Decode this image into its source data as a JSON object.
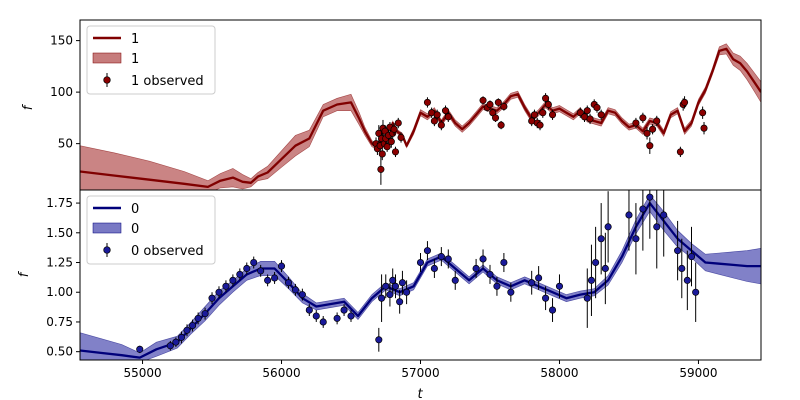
{
  "chart_data": [
    {
      "type": "line",
      "ylabel": "f",
      "xlim": [
        54550,
        59450
      ],
      "ylim": [
        5,
        170
      ],
      "yticks": [
        50,
        100,
        150
      ],
      "colors": {
        "line": "#800000",
        "band": "#b35050",
        "marker": "#8b0000"
      },
      "legend": {
        "position": "top-left",
        "line_label": "1",
        "band_label": "1",
        "points_label": "1 observed"
      },
      "gp_mean": {
        "x": [
          54550,
          54800,
          55050,
          55300,
          55470,
          55560,
          55650,
          55720,
          55780,
          55830,
          55900,
          56000,
          56100,
          56200,
          56300,
          56400,
          56500,
          56560,
          56600,
          56650,
          56700,
          56720,
          56750,
          56780,
          56800,
          56830,
          56870,
          56900,
          56950,
          57000,
          57050,
          57100,
          57150,
          57200,
          57250,
          57300,
          57350,
          57400,
          57450,
          57500,
          57550,
          57600,
          57650,
          57700,
          57750,
          57800,
          57850,
          57900,
          57950,
          58000,
          58050,
          58100,
          58150,
          58200,
          58250,
          58300,
          58350,
          58400,
          58450,
          58500,
          58550,
          58600,
          58650,
          58700,
          58750,
          58800,
          58850,
          58900,
          58950,
          59000,
          59050,
          59100,
          59150,
          59200,
          59250,
          59300,
          59350,
          59400,
          59450
        ],
        "y": [
          23,
          19,
          15,
          11,
          8,
          14,
          17,
          13,
          12,
          18,
          22,
          35,
          48,
          55,
          82,
          88,
          90,
          74,
          62,
          50,
          45,
          60,
          52,
          58,
          70,
          62,
          58,
          48,
          62,
          80,
          76,
          82,
          70,
          80,
          70,
          64,
          70,
          78,
          86,
          84,
          82,
          88,
          96,
          98,
          85,
          74,
          80,
          88,
          82,
          84,
          80,
          76,
          82,
          74,
          72,
          70,
          82,
          80,
          72,
          66,
          68,
          62,
          72,
          70,
          60,
          78,
          82,
          62,
          70,
          90,
          102,
          120,
          140,
          142,
          132,
          128,
          120,
          110,
          100
        ]
      },
      "gp_band_halfwidth": [
        25,
        22,
        18,
        12,
        6,
        7,
        9,
        7,
        4,
        4,
        6,
        8,
        10,
        8,
        6,
        6,
        8,
        6,
        4,
        3,
        2,
        2,
        2,
        2,
        2,
        2,
        2,
        2,
        3,
        3,
        3,
        3,
        3,
        3,
        3,
        3,
        3,
        3,
        3,
        3,
        3,
        3,
        3,
        3,
        3,
        3,
        3,
        3,
        3,
        3,
        3,
        3,
        3,
        3,
        3,
        3,
        3,
        3,
        3,
        3,
        3,
        3,
        3,
        3,
        3,
        3,
        3,
        3,
        3,
        3,
        3,
        3,
        4,
        5,
        6,
        7,
        8,
        9,
        10
      ],
      "observed": {
        "x": [
          56680,
          56690,
          56700,
          56710,
          56715,
          56720,
          56725,
          56730,
          56740,
          56745,
          56750,
          56760,
          56770,
          56780,
          56790,
          56800,
          56810,
          56820,
          56840,
          56860,
          57050,
          57080,
          57100,
          57120,
          57150,
          57180,
          57200,
          57450,
          57480,
          57500,
          57520,
          57540,
          57560,
          57580,
          57600,
          57800,
          57820,
          57840,
          57860,
          57880,
          57900,
          57920,
          57950,
          58150,
          58180,
          58200,
          58220,
          58250,
          58270,
          58300,
          58550,
          58600,
          58630,
          58650,
          58670,
          58700,
          58870,
          58890,
          58900,
          59030,
          59040
        ],
        "y": [
          50,
          45,
          60,
          48,
          25,
          55,
          40,
          65,
          50,
          62,
          55,
          47,
          58,
          66,
          52,
          60,
          64,
          42,
          70,
          56,
          90,
          80,
          72,
          78,
          68,
          82,
          76,
          92,
          85,
          88,
          80,
          75,
          90,
          68,
          86,
          72,
          78,
          70,
          68,
          80,
          94,
          88,
          78,
          80,
          76,
          82,
          74,
          88,
          85,
          78,
          70,
          75,
          60,
          48,
          64,
          72,
          42,
          88,
          90,
          80,
          65
        ],
        "err": [
          6,
          6,
          8,
          6,
          15,
          6,
          6,
          8,
          5,
          6,
          5,
          5,
          6,
          5,
          6,
          5,
          6,
          5,
          5,
          5,
          5,
          5,
          5,
          5,
          5,
          5,
          5,
          4,
          4,
          4,
          4,
          4,
          4,
          4,
          4,
          5,
          5,
          5,
          5,
          5,
          5,
          5,
          5,
          5,
          5,
          5,
          5,
          5,
          5,
          5,
          5,
          5,
          6,
          8,
          5,
          5,
          5,
          6,
          6,
          6,
          6
        ]
      }
    },
    {
      "type": "line",
      "ylabel": "f",
      "xlabel": "t",
      "xlim": [
        54550,
        59450
      ],
      "ylim": [
        0.43,
        1.86
      ],
      "xticks": [
        55000,
        56000,
        57000,
        58000,
        59000
      ],
      "yticks": [
        0.5,
        0.75,
        1.0,
        1.25,
        1.5,
        1.75
      ],
      "ytick_labels": [
        "0.50",
        "0.75",
        "1.00",
        "1.25",
        "1.50",
        "1.75"
      ],
      "colors": {
        "line": "#00007a",
        "band": "#4c4cb0",
        "marker": "#1a1a9a"
      },
      "legend": {
        "position": "top-left",
        "line_label": "0",
        "band_label": "0",
        "points_label": "0 observed"
      },
      "gp_mean": {
        "x": [
          54550,
          54700,
          54850,
          54980,
          55100,
          55250,
          55350,
          55450,
          55550,
          55650,
          55750,
          55850,
          55950,
          56050,
          56150,
          56250,
          56350,
          56450,
          56550,
          56650,
          56750,
          56850,
          56950,
          57050,
          57150,
          57250,
          57350,
          57450,
          57550,
          57650,
          57750,
          57850,
          57950,
          58050,
          58150,
          58250,
          58350,
          58450,
          58550,
          58650,
          58750,
          58850,
          58950,
          59050,
          59150,
          59250,
          59350,
          59450
        ],
        "y": [
          0.51,
          0.49,
          0.47,
          0.45,
          0.52,
          0.58,
          0.7,
          0.82,
          0.95,
          1.05,
          1.15,
          1.2,
          1.2,
          1.08,
          0.95,
          0.88,
          0.9,
          0.92,
          0.8,
          0.95,
          1.05,
          1.0,
          1.05,
          1.25,
          1.3,
          1.2,
          1.1,
          1.2,
          1.1,
          1.05,
          1.1,
          1.05,
          1.0,
          0.95,
          0.98,
          1.0,
          1.1,
          1.3,
          1.55,
          1.75,
          1.6,
          1.45,
          1.35,
          1.25,
          1.24,
          1.23,
          1.22,
          1.22
        ]
      },
      "gp_band_halfwidth": [
        0.15,
        0.12,
        0.09,
        0.04,
        0.06,
        0.05,
        0.05,
        0.06,
        0.06,
        0.05,
        0.05,
        0.06,
        0.06,
        0.05,
        0.04,
        0.03,
        0.03,
        0.03,
        0.03,
        0.03,
        0.03,
        0.03,
        0.03,
        0.03,
        0.03,
        0.03,
        0.03,
        0.03,
        0.03,
        0.03,
        0.03,
        0.03,
        0.03,
        0.03,
        0.03,
        0.03,
        0.04,
        0.05,
        0.06,
        0.07,
        0.08,
        0.07,
        0.06,
        0.07,
        0.09,
        0.11,
        0.13,
        0.15
      ],
      "observed": {
        "x": [
          54980,
          55200,
          55240,
          55280,
          55320,
          55360,
          55400,
          55450,
          55500,
          55550,
          55600,
          55650,
          55700,
          55750,
          55800,
          55850,
          55900,
          55950,
          56000,
          56050,
          56100,
          56150,
          56200,
          56250,
          56300,
          56400,
          56450,
          56500,
          56700,
          56720,
          56750,
          56780,
          56800,
          56820,
          56850,
          56870,
          56900,
          57000,
          57050,
          57100,
          57150,
          57200,
          57250,
          57400,
          57450,
          57500,
          57550,
          57600,
          57650,
          57800,
          57850,
          57900,
          57950,
          58000,
          58200,
          58230,
          58260,
          58300,
          58330,
          58350,
          58500,
          58550,
          58600,
          58650,
          58700,
          58750,
          58850,
          58880,
          58920,
          58950,
          58980
        ],
        "y": [
          0.52,
          0.55,
          0.58,
          0.62,
          0.68,
          0.72,
          0.78,
          0.82,
          0.95,
          1.0,
          1.05,
          1.1,
          1.15,
          1.2,
          1.25,
          1.18,
          1.1,
          1.12,
          1.22,
          1.08,
          1.02,
          0.98,
          0.85,
          0.8,
          0.75,
          0.78,
          0.85,
          0.8,
          0.6,
          0.95,
          1.05,
          0.98,
          1.1,
          1.05,
          0.92,
          1.08,
          1.0,
          1.25,
          1.35,
          1.2,
          1.3,
          1.28,
          1.1,
          1.2,
          1.28,
          1.15,
          1.05,
          1.25,
          1.0,
          1.08,
          1.12,
          0.95,
          0.85,
          1.05,
          0.95,
          1.1,
          1.25,
          1.45,
          1.2,
          1.55,
          1.65,
          1.45,
          1.7,
          1.8,
          1.55,
          1.65,
          1.35,
          1.2,
          1.1,
          1.3,
          1.0
        ],
        "err": [
          0.03,
          0.04,
          0.04,
          0.05,
          0.05,
          0.05,
          0.05,
          0.05,
          0.05,
          0.05,
          0.05,
          0.05,
          0.05,
          0.05,
          0.05,
          0.05,
          0.05,
          0.05,
          0.05,
          0.05,
          0.05,
          0.05,
          0.05,
          0.05,
          0.05,
          0.05,
          0.05,
          0.05,
          0.1,
          0.2,
          0.1,
          0.1,
          0.1,
          0.1,
          0.1,
          0.1,
          0.1,
          0.08,
          0.08,
          0.08,
          0.08,
          0.08,
          0.08,
          0.08,
          0.08,
          0.08,
          0.08,
          0.08,
          0.08,
          0.1,
          0.1,
          0.1,
          0.1,
          0.1,
          0.25,
          0.3,
          0.3,
          0.3,
          0.3,
          0.3,
          0.3,
          0.3,
          0.35,
          0.35,
          0.35,
          0.35,
          0.25,
          0.25,
          0.25,
          0.25,
          0.25
        ]
      }
    }
  ]
}
